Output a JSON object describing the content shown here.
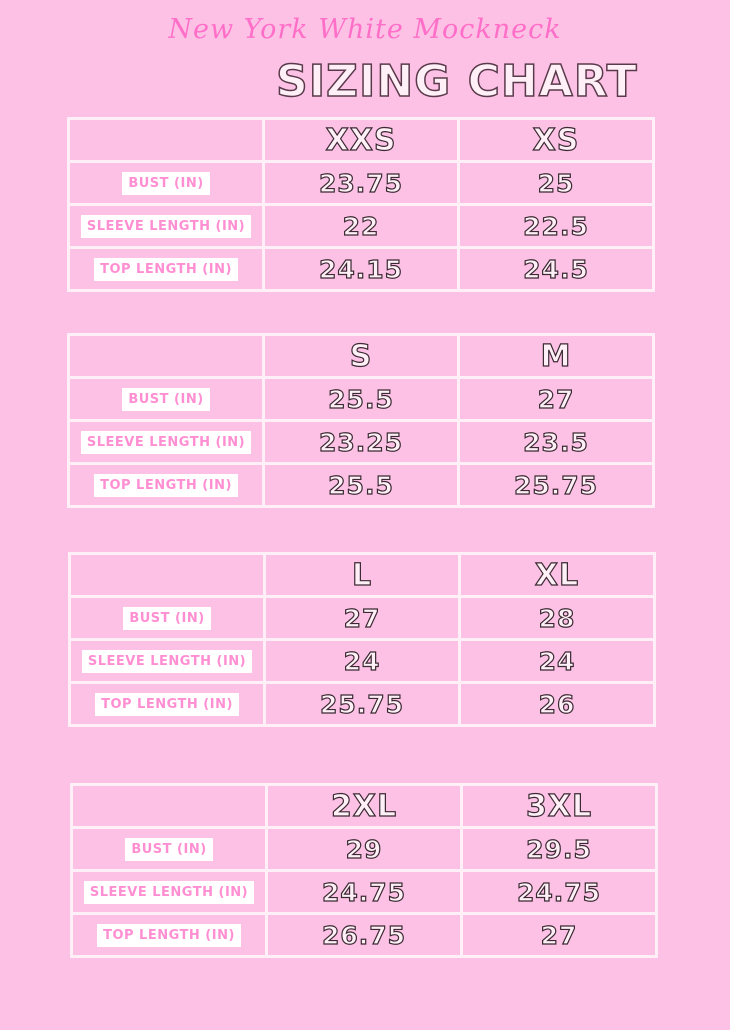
{
  "header": {
    "subtitle": "New York White Mockneck",
    "title": "SIZING CHART"
  },
  "row_labels": [
    "BUST (IN)",
    "SLEEVE LENGTH (IN)",
    "TOP LENGTH (IN)"
  ],
  "tables": [
    {
      "sizes": [
        "XXS",
        "XS"
      ],
      "rows": [
        [
          "23.75",
          "25"
        ],
        [
          "22",
          "22.5"
        ],
        [
          "24.15",
          "24.5"
        ]
      ]
    },
    {
      "sizes": [
        "S",
        "M"
      ],
      "rows": [
        [
          "25.5",
          "27"
        ],
        [
          "23.25",
          "23.5"
        ],
        [
          "25.5",
          "25.75"
        ]
      ]
    },
    {
      "sizes": [
        "L",
        "XL"
      ],
      "rows": [
        [
          "27",
          "28"
        ],
        [
          "24",
          "24"
        ],
        [
          "25.75",
          "26"
        ]
      ]
    },
    {
      "sizes": [
        "2XL",
        "3XL"
      ],
      "rows": [
        [
          "29",
          "29.5"
        ],
        [
          "24.75",
          "24.75"
        ],
        [
          "26.75",
          "27"
        ]
      ]
    }
  ],
  "colors": {
    "background": "#fdc1e6",
    "accent_pink": "#ff6fc8",
    "label_text": "#ff8fd2",
    "grid": "#fff0f8"
  }
}
